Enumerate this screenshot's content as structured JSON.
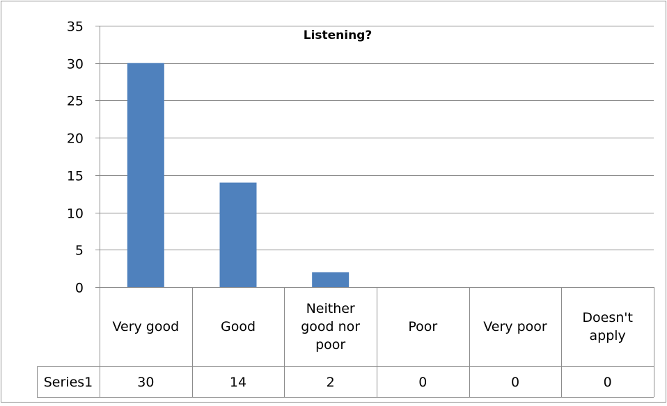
{
  "chart_data": {
    "type": "bar",
    "title": "Listening?",
    "categories": [
      [
        "Very good"
      ],
      [
        "Good"
      ],
      [
        "Neither",
        "good nor",
        "poor"
      ],
      [
        "Poor"
      ],
      [
        "Very poor"
      ],
      [
        "Doesn't",
        "apply"
      ]
    ],
    "series": [
      {
        "name": "Series1",
        "values": [
          30,
          14,
          2,
          0,
          0,
          0
        ]
      }
    ],
    "ylim": [
      0,
      35
    ],
    "yticks": [
      0,
      5,
      10,
      15,
      20,
      25,
      30,
      35
    ],
    "grid": true,
    "data_table": true,
    "bar_color": "#4f81bd"
  }
}
